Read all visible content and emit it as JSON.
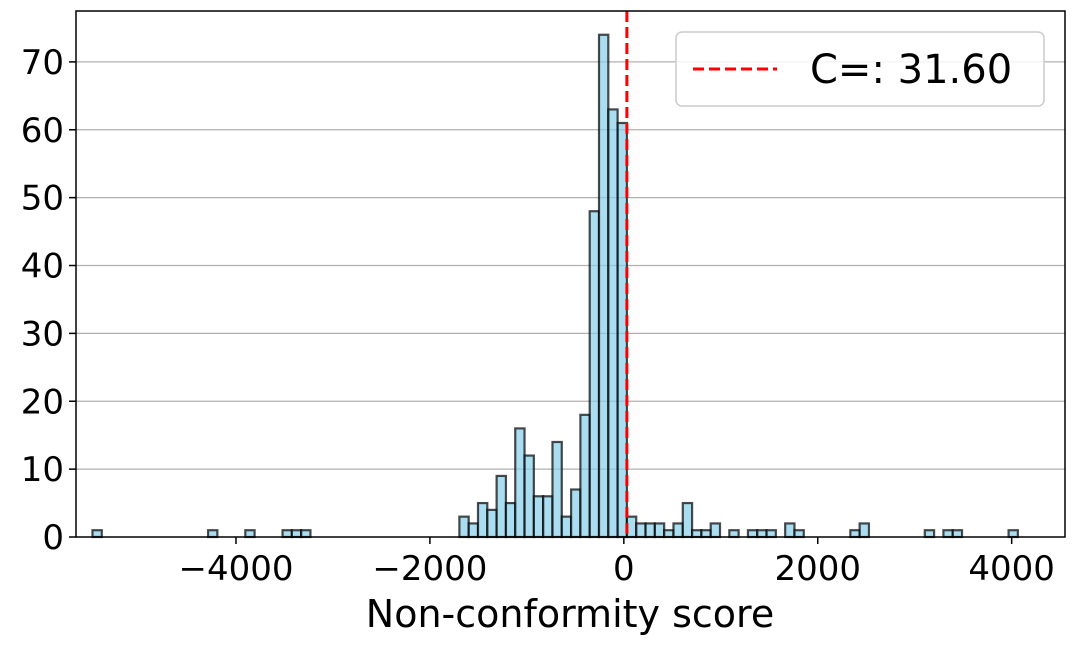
{
  "chart_data": {
    "type": "bar",
    "xlabel": "Non-conformity score",
    "ylabel": "",
    "xlim": [
      -5650,
      4550
    ],
    "ylim": [
      0,
      77.5
    ],
    "grid": "y",
    "x_ticks": [
      -4000,
      -2000,
      0,
      2000,
      4000
    ],
    "x_tick_labels": [
      "−4000",
      "−2000",
      "0",
      "2000",
      "4000"
    ],
    "y_ticks": [
      0,
      10,
      20,
      30,
      40,
      50,
      60,
      70
    ],
    "y_tick_labels": [
      "0",
      "10",
      "20",
      "30",
      "40",
      "50",
      "60",
      "70"
    ],
    "bin_width": 96,
    "bar_color": "#87ceeb",
    "edge_color": "#000000",
    "bins": [
      {
        "left": -5480,
        "value": 1
      },
      {
        "left": -4288,
        "value": 1
      },
      {
        "left": -3904,
        "value": 1
      },
      {
        "left": -3520,
        "value": 1
      },
      {
        "left": -3424,
        "value": 1
      },
      {
        "left": -3328,
        "value": 1
      },
      {
        "left": -1696,
        "value": 3
      },
      {
        "left": -1600,
        "value": 2
      },
      {
        "left": -1504,
        "value": 5
      },
      {
        "left": -1408,
        "value": 4
      },
      {
        "left": -1312,
        "value": 9
      },
      {
        "left": -1216,
        "value": 5
      },
      {
        "left": -1120,
        "value": 16
      },
      {
        "left": -1024,
        "value": 12
      },
      {
        "left": -928,
        "value": 6
      },
      {
        "left": -832,
        "value": 6
      },
      {
        "left": -736,
        "value": 14
      },
      {
        "left": -640,
        "value": 3
      },
      {
        "left": -544,
        "value": 7
      },
      {
        "left": -448,
        "value": 18
      },
      {
        "left": -352,
        "value": 48
      },
      {
        "left": -256,
        "value": 74
      },
      {
        "left": -160,
        "value": 63
      },
      {
        "left": -64,
        "value": 61
      },
      {
        "left": 32,
        "value": 3
      },
      {
        "left": 128,
        "value": 2
      },
      {
        "left": 224,
        "value": 2
      },
      {
        "left": 320,
        "value": 2
      },
      {
        "left": 416,
        "value": 1
      },
      {
        "left": 512,
        "value": 2
      },
      {
        "left": 608,
        "value": 5
      },
      {
        "left": 704,
        "value": 1
      },
      {
        "left": 800,
        "value": 1
      },
      {
        "left": 896,
        "value": 2
      },
      {
        "left": 1088,
        "value": 1
      },
      {
        "left": 1280,
        "value": 1
      },
      {
        "left": 1376,
        "value": 1
      },
      {
        "left": 1472,
        "value": 1
      },
      {
        "left": 1664,
        "value": 2
      },
      {
        "left": 1760,
        "value": 1
      },
      {
        "left": 2336,
        "value": 1
      },
      {
        "left": 2432,
        "value": 2
      },
      {
        "left": 3104,
        "value": 1
      },
      {
        "left": 3296,
        "value": 1
      },
      {
        "left": 3392,
        "value": 1
      },
      {
        "left": 3968,
        "value": 1
      }
    ],
    "threshold": {
      "value": 31.6,
      "color": "#ff0000",
      "style": "dashed"
    },
    "legend": {
      "placement": "top-right",
      "entries": [
        {
          "label": "C=: 31.60",
          "color": "#ff0000",
          "style": "dashed"
        }
      ]
    }
  }
}
